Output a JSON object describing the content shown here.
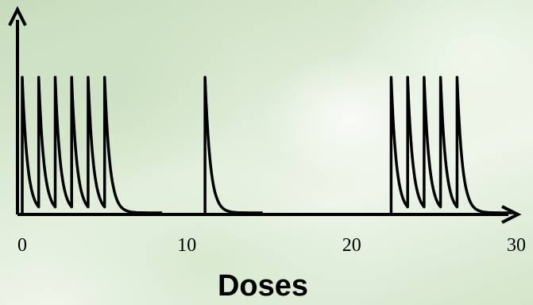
{
  "chart_data": {
    "type": "line",
    "title": "",
    "xlabel": "Doses",
    "ylabel": "",
    "xlim": [
      0,
      30
    ],
    "x_ticks": [
      "0",
      "10",
      "20",
      "30"
    ],
    "x_tick_values": [
      0,
      10,
      20,
      30
    ],
    "grid": false,
    "legend": "none",
    "line_color": "#000000",
    "series": [
      {
        "values": [
          {
            "dose_time": 0.0,
            "peak": 0.97
          },
          {
            "dose_time": 1.0,
            "peak": 0.97
          },
          {
            "dose_time": 2.0,
            "peak": 0.97
          },
          {
            "dose_time": 3.0,
            "peak": 0.97
          },
          {
            "dose_time": 4.0,
            "peak": 0.97
          },
          {
            "dose_time": 5.0,
            "peak": 0.97
          },
          {
            "dose_time": 11.1,
            "peak": 0.97
          },
          {
            "dose_time": 22.4,
            "peak": 0.97
          },
          {
            "dose_time": 23.4,
            "peak": 0.97
          },
          {
            "dose_time": 24.4,
            "peak": 0.97
          },
          {
            "dose_time": 25.4,
            "peak": 0.97
          },
          {
            "dose_time": 26.4,
            "peak": 0.97
          }
        ]
      }
    ]
  }
}
